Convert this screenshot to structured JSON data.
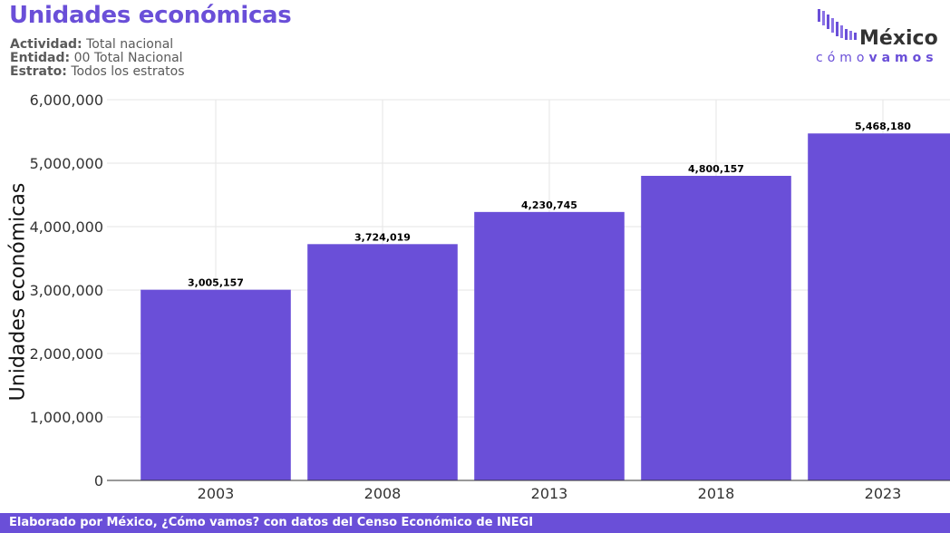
{
  "header": {
    "title": "Unidades económicas",
    "actividad_label": "Actividad:",
    "actividad_value": "Total nacional",
    "entidad_label": "Entidad:",
    "entidad_value": "00 Total Nacional",
    "estrato_label": "Estrato:",
    "estrato_value": "Todos los estratos"
  },
  "logo": {
    "name": "México",
    "tagline_light": "cómo",
    "tagline_bold": "vamos"
  },
  "colors": {
    "accent": "#6a4fd8",
    "bar": "#6a4fd8",
    "grid": "#e6e6e6"
  },
  "footer": {
    "text": "Elaborado por México, ¿Cómo vamos? con datos del Censo Económico de INEGI"
  },
  "chart_data": {
    "type": "bar",
    "title": "Unidades económicas",
    "ylabel": "Unidades económicas",
    "xlabel": "",
    "categories": [
      "2003",
      "2008",
      "2013",
      "2018",
      "2023"
    ],
    "values": [
      3005157,
      3724019,
      4230745,
      4800157,
      5468180
    ],
    "value_labels": [
      "3,005,157",
      "3,724,019",
      "4,230,745",
      "4,800,157",
      "5,468,180"
    ],
    "ylim": [
      0,
      6000000
    ],
    "yticks": [
      0,
      1000000,
      2000000,
      3000000,
      4000000,
      5000000,
      6000000
    ],
    "ytick_labels": [
      "0",
      "1,000,000",
      "2,000,000",
      "3,000,000",
      "4,000,000",
      "5,000,000",
      "6,000,000"
    ],
    "grid": true,
    "legend": "none"
  }
}
